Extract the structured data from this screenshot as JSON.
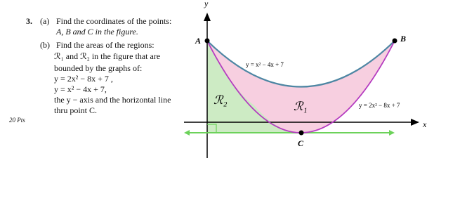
{
  "problem": {
    "number": "3.",
    "part_a": {
      "label": "(a)",
      "lines": [
        "Find the coordinates of the points:",
        "A, B and C in the figure."
      ]
    },
    "part_b": {
      "label": "(b)",
      "lines": [
        "Find the areas of the regions:",
        "ℛ₁ and ℛ₂ in the figure that are",
        "bounded by the graphs of:",
        "y = 2x² − 8x + 7 ,",
        "y = x² − 4x + 7,",
        "the y − axis and the horizontal line",
        "thru point C."
      ]
    },
    "points": "20 Pts"
  },
  "figure": {
    "axis_labels": {
      "x": "x",
      "y": "y"
    },
    "point_labels": {
      "a": "A",
      "b": "B",
      "c": "C"
    },
    "region_labels": {
      "r1": "ℛ₁",
      "r2": "ℛ₂"
    },
    "curve_labels": {
      "upper": "y = x² − 4x + 7",
      "lower": "y = 2x² − 8x + 7"
    }
  }
}
